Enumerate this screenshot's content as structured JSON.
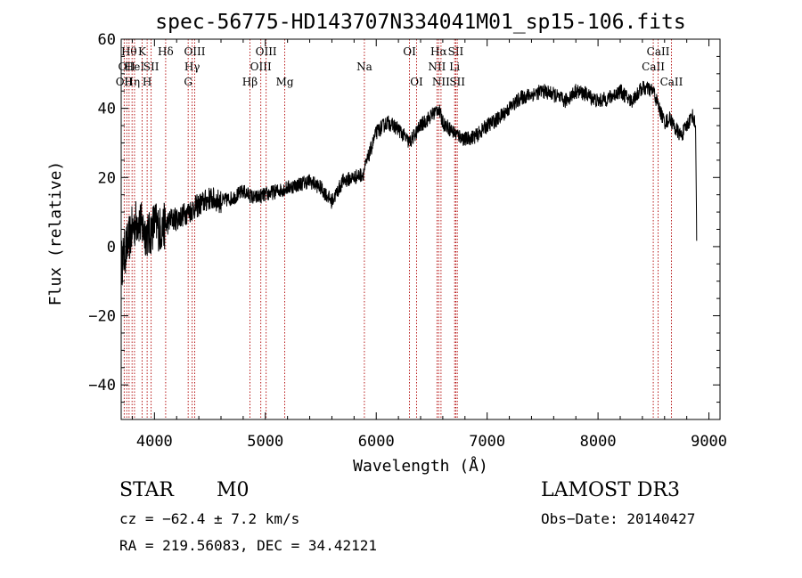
{
  "chart_data": {
    "type": "line",
    "title": "spec-56775-HD143707N334041M01_sp15-106.fits",
    "xlabel": "Wavelength (Å)",
    "ylabel": "Flux (relative)",
    "xlim": [
      3700,
      9100
    ],
    "ylim": [
      -50,
      60
    ],
    "x_ticks": [
      4000,
      5000,
      6000,
      7000,
      8000,
      9000
    ],
    "x_tick_labels": [
      "4000",
      "5000",
      "6000",
      "7000",
      "8000",
      "9000"
    ],
    "y_ticks": [
      -40,
      -20,
      0,
      20,
      40,
      60
    ],
    "y_tick_labels": [
      "−40",
      "−20",
      "0",
      "20",
      "40",
      "60"
    ],
    "series": [
      {
        "name": "flux",
        "x": [
          3700,
          3750,
          3800,
          3850,
          3900,
          3950,
          4000,
          4050,
          4100,
          4150,
          4200,
          4300,
          4400,
          4500,
          4600,
          4700,
          4800,
          4900,
          5000,
          5100,
          5200,
          5300,
          5400,
          5500,
          5600,
          5700,
          5800,
          5880,
          5920,
          6000,
          6100,
          6200,
          6300,
          6400,
          6500,
          6560,
          6600,
          6700,
          6800,
          6900,
          7000,
          7100,
          7200,
          7300,
          7400,
          7500,
          7600,
          7700,
          7800,
          7900,
          8000,
          8100,
          8200,
          8300,
          8400,
          8500,
          8550,
          8600,
          8650,
          8700,
          8750,
          8800,
          8850,
          8880,
          8890
        ],
        "y": [
          -5,
          0,
          5,
          8,
          5,
          3,
          7,
          5,
          6,
          8,
          8,
          10,
          12,
          14,
          13,
          14,
          16,
          14,
          15,
          16,
          17,
          18,
          19,
          17,
          13,
          19,
          20,
          21,
          25,
          33,
          36,
          34,
          30,
          35,
          38,
          40,
          36,
          33,
          31,
          32,
          35,
          37,
          40,
          43,
          44,
          45,
          44,
          42,
          45,
          44,
          42,
          43,
          45,
          42,
          46,
          45,
          40,
          36,
          37,
          34,
          32,
          35,
          38,
          35,
          1
        ]
      }
    ],
    "line_markers": [
      {
        "wl": 3727,
        "label": "OII",
        "row": 3
      },
      {
        "wl": 3750,
        "label": "OII",
        "row": 2
      },
      {
        "wl": 3771,
        "label": "Hθ",
        "row": 1
      },
      {
        "wl": 3798,
        "label": "Hη",
        "row": 3
      },
      {
        "wl": 3820,
        "label": "HeI",
        "row": 2
      },
      {
        "wl": 3889,
        "label": "K",
        "row": 1
      },
      {
        "wl": 3934,
        "label": "H",
        "row": 3
      },
      {
        "wl": 3970,
        "label": "SII",
        "row": 2
      },
      {
        "wl": 4101,
        "label": "Hδ",
        "row": 1
      },
      {
        "wl": 4304,
        "label": "G",
        "row": 3
      },
      {
        "wl": 4340,
        "label": "Hγ",
        "row": 2
      },
      {
        "wl": 4363,
        "label": "OIII",
        "row": 1
      },
      {
        "wl": 4861,
        "label": "Hβ",
        "row": 3
      },
      {
        "wl": 4959,
        "label": "OIII",
        "row": 2
      },
      {
        "wl": 5007,
        "label": "OIII",
        "row": 1
      },
      {
        "wl": 5175,
        "label": "Mg",
        "row": 3
      },
      {
        "wl": 5893,
        "label": "Na",
        "row": 2
      },
      {
        "wl": 6300,
        "label": "OI",
        "row": 1
      },
      {
        "wl": 6364,
        "label": "OI",
        "row": 3
      },
      {
        "wl": 6548,
        "label": "NII",
        "row": 2
      },
      {
        "wl": 6563,
        "label": "Hα",
        "row": 1
      },
      {
        "wl": 6584,
        "label": "NII",
        "row": 3
      },
      {
        "wl": 6707,
        "label": "Li",
        "row": 2
      },
      {
        "wl": 6717,
        "label": "SII",
        "row": 1
      },
      {
        "wl": 6731,
        "label": "SII",
        "row": 3
      },
      {
        "wl": 8498,
        "label": "CaII",
        "row": 2
      },
      {
        "wl": 8542,
        "label": "CaII",
        "row": 1
      },
      {
        "wl": 8662,
        "label": "CaII",
        "row": 3
      }
    ]
  },
  "info": {
    "object_class": "STAR",
    "subclass": "M0",
    "survey": "LAMOST DR3",
    "redshift_text": "cz = −62.4 ± 7.2 km/s",
    "obs_date": "Obs−Date: 20140427",
    "coords": "RA = 219.56083, DEC =  34.42121"
  }
}
